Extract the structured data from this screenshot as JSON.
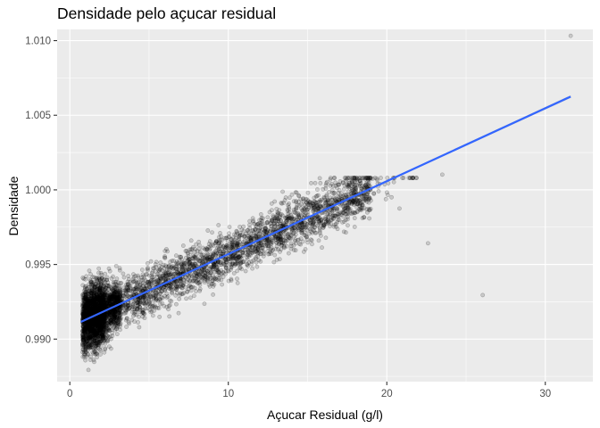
{
  "chart_data": {
    "type": "scatter",
    "title": "Densidade pelo açucar residual",
    "xlabel": "Açucar Residual (g/l)",
    "ylabel": "Densidade",
    "xlim": [
      -0.8,
      33.0
    ],
    "ylim": [
      0.98715,
      1.01075
    ],
    "x_ticks": [
      0,
      10,
      20,
      30
    ],
    "x_tick_labels": [
      "0",
      "10",
      "20",
      "30"
    ],
    "y_ticks": [
      0.99,
      0.995,
      1.0,
      1.005,
      1.01
    ],
    "y_tick_labels": [
      "0.990",
      "0.995",
      "1.000",
      "1.005",
      "1.010"
    ],
    "grid": true,
    "panel_background": "#ebebeb",
    "point_color": "#000000",
    "point_alpha": 0.15,
    "regression_line": {
      "method": "lm",
      "color": "#3366FF",
      "with_confidence_band": true,
      "points": [
        [
          0.7,
          0.99115
        ],
        [
          31.6,
          1.00625
        ]
      ]
    },
    "notable_points": [
      {
        "x": 31.6,
        "y": 1.01032
      },
      {
        "x": 26.05,
        "y": 0.99295
      },
      {
        "x": 22.6,
        "y": 0.99642
      },
      {
        "x": 23.5,
        "y": 1.00102
      },
      {
        "x": 20.8,
        "y": 0.99875
      }
    ],
    "n_points": 4898
  }
}
